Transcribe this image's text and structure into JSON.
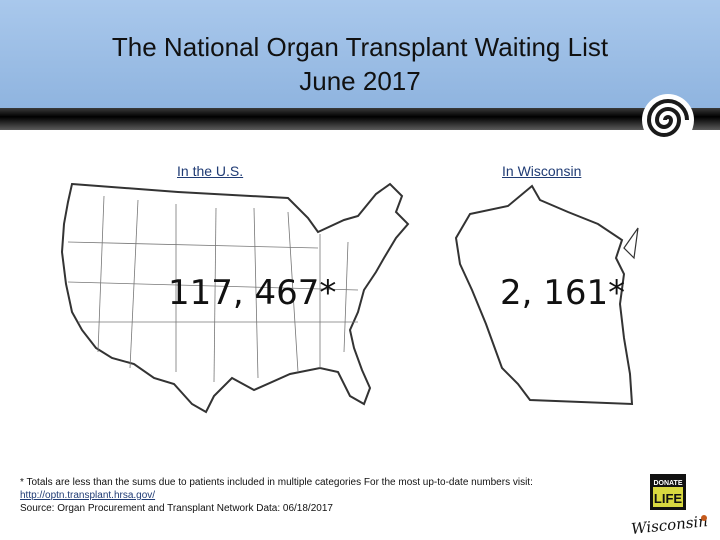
{
  "slide": {
    "title_line1": "The National Organ Transplant Waiting List",
    "title_line2": "June 2017"
  },
  "us": {
    "label": "In the U.S.",
    "value": "117, 467*"
  },
  "wisconsin": {
    "label": "In Wisconsin",
    "value": "2, 161*"
  },
  "footnote": {
    "line1": "* Totals are less than the sums due to patients included in multiple categories  For the most up-to-date numbers visit:",
    "link": "http://optn.transplant.hrsa.gov/",
    "line3": "Source: Organ Procurement and Transplant Network Data:  06/18/2017"
  },
  "logo": {
    "donate": "DONATE",
    "life": "LIFE",
    "state": "Wisconsin"
  },
  "colors": {
    "header": "#a9c8ec",
    "band": "#000000",
    "link": "#1f3b74"
  },
  "icons": {
    "swirl": "swirl-icon",
    "us_map": "us-map",
    "wi_map": "wisconsin-map"
  }
}
